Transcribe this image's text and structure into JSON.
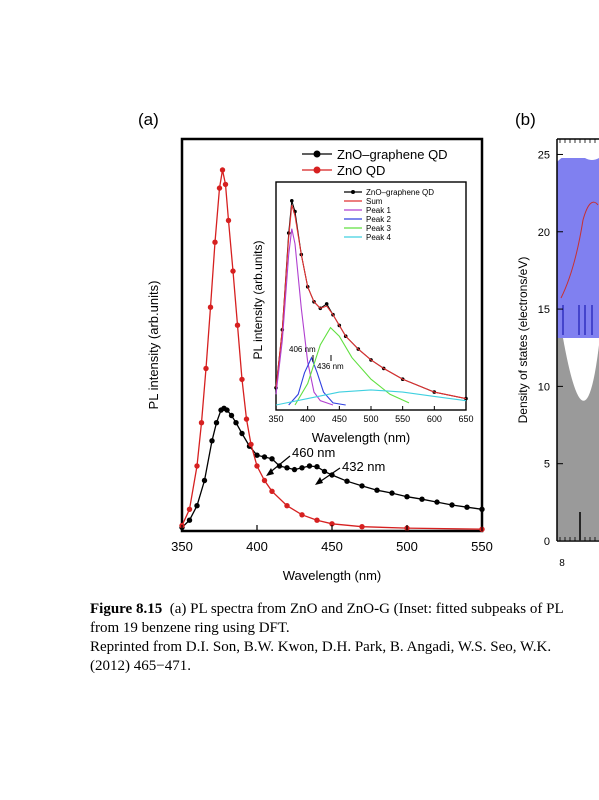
{
  "panel_a": {
    "label": "(a)",
    "chart_data": {
      "type": "line",
      "title": "",
      "xlabel": "Wavelength (nm)",
      "ylabel": "PL intensity (arb.units)",
      "xlim": [
        350,
        550
      ],
      "ylim": [
        0,
        100
      ],
      "xticks": [
        "350",
        "400",
        "450",
        "500",
        "550"
      ],
      "legend_position": "top-right",
      "series": [
        {
          "name": "ZnO–graphene QD",
          "color": "#000000",
          "x": [
            350,
            355,
            360,
            365,
            370,
            373,
            376,
            378,
            380,
            383,
            386,
            390,
            395,
            400,
            405,
            410,
            415,
            420,
            425,
            430,
            435,
            440,
            445,
            450,
            460,
            470,
            480,
            490,
            500,
            510,
            520,
            530,
            540,
            550
          ],
          "y": [
            1,
            3,
            7,
            14,
            25,
            30,
            33.5,
            34,
            33.5,
            32,
            30,
            27,
            23.5,
            21,
            20.5,
            20,
            18,
            17.5,
            17,
            17.5,
            18,
            17.8,
            16.5,
            15.5,
            13.8,
            12.5,
            11.3,
            10.5,
            9.5,
            8.8,
            8,
            7.2,
            6.6,
            6
          ]
        },
        {
          "name": "ZnO QD",
          "color": "#d62020",
          "x": [
            350,
            355,
            360,
            363,
            366,
            369,
            372,
            375,
            377,
            379,
            381,
            384,
            387,
            390,
            393,
            396,
            400,
            405,
            410,
            420,
            430,
            440,
            450,
            470,
            500,
            550
          ],
          "y": [
            1.5,
            6,
            18,
            30,
            45,
            62,
            80,
            95,
            100,
            96,
            86,
            72,
            57,
            42,
            31,
            24,
            18,
            14,
            11,
            7,
            4.5,
            3,
            2,
            1.2,
            0.8,
            0.5
          ]
        }
      ],
      "annotations": [
        "460 nm",
        "432 nm"
      ],
      "inset": {
        "type": "line",
        "xlabel": "Wavelength (nm)",
        "ylabel": "PL intensity (arb.units)",
        "xlim": [
          350,
          650
        ],
        "xticks": [
          "350",
          "400",
          "450",
          "500",
          "550",
          "600",
          "650"
        ],
        "legend": [
          "ZnO–graphene QD",
          "Sum",
          "Peak 1",
          "Peak 2",
          "Peak 3",
          "Peak 4"
        ],
        "annotations": [
          "406 nm",
          "436 nm"
        ],
        "series": [
          {
            "name": "ZnO–graphene QD",
            "color": "#000000",
            "x": [
              350,
              360,
              370,
              375,
              380,
              390,
              400,
              410,
              420,
              430,
              440,
              450,
              460,
              480,
              500,
              520,
              550,
              600,
              650
            ],
            "y": [
              8,
              35,
              80,
              95,
              90,
              70,
              55,
              48,
              45,
              47,
              42,
              37,
              32,
              26,
              21,
              17,
              12,
              6,
              3
            ]
          },
          {
            "name": "Sum",
            "color": "#e03030",
            "x": [
              350,
              360,
              370,
              375,
              380,
              390,
              400,
              410,
              420,
              430,
              440,
              450,
              460,
              480,
              500,
              520,
              550,
              600,
              650
            ],
            "y": [
              8,
              35,
              78,
              93,
              88,
              70,
              55,
              48,
              45,
              46,
              42,
              37,
              32,
              26,
              21,
              17,
              12,
              6,
              3
            ]
          },
          {
            "name": "Peak 1",
            "color": "#b040d0",
            "x": [
              350,
              360,
              370,
              375,
              380,
              390,
              400,
              410,
              420,
              440
            ],
            "y": [
              5,
              30,
              70,
              82,
              75,
              45,
              20,
              6,
              2,
              0
            ]
          },
          {
            "name": "Peak 2",
            "color": "#3040e0",
            "x": [
              370,
              385,
              395,
              406,
              415,
              425,
              440,
              460
            ],
            "y": [
              0,
              5,
              15,
              22,
              15,
              6,
              1,
              0
            ]
          },
          {
            "name": "Peak 3",
            "color": "#60e040",
            "x": [
              380,
              400,
              420,
              436,
              450,
              470,
              500,
              530,
              560
            ],
            "y": [
              0,
              10,
              28,
              36,
              32,
              22,
              12,
              5,
              1
            ]
          },
          {
            "name": "Peak 4",
            "color": "#40d0e0",
            "x": [
              350,
              400,
              450,
              500,
              550,
              600,
              650
            ],
            "y": [
              0,
              3,
              6,
              7,
              6,
              4,
              2
            ]
          }
        ]
      }
    }
  },
  "panel_b": {
    "label": "(b)",
    "chart_data": {
      "type": "line",
      "ylabel": "Density of states (electrons/eV)",
      "yticks": [
        "0",
        "5",
        "10",
        "15",
        "20",
        "25"
      ],
      "xticks": [
        "8"
      ],
      "ylim": [
        0,
        26
      ]
    }
  },
  "caption": {
    "figure_label": "Figure 8.15",
    "line1_rest": "(a) PL spectra from ZnO and ZnO-G (Inset: fitted subpeaks of PL",
    "line2": "from 19 benzene ring using DFT.",
    "line3": "Reprinted from D.I. Son, B.W. Kwon, D.H. Park, B. Angadi, W.S. Seo, W.K.",
    "line4": "(2012) 465−471."
  }
}
